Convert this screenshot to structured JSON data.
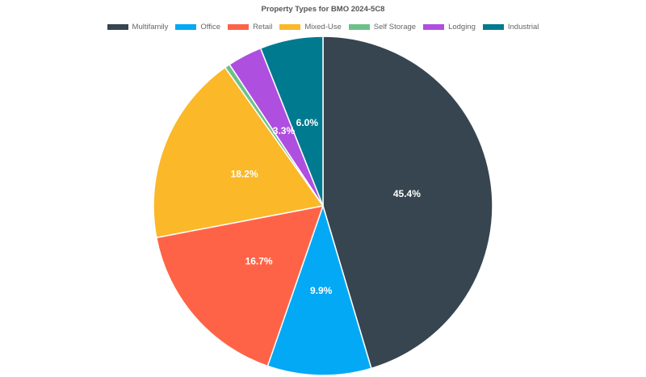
{
  "chart_data": {
    "type": "pie",
    "title": "Property Types for BMO 2024-5C8",
    "legend_position": "top",
    "slices": [
      {
        "label": "Multifamily",
        "value": 45.4,
        "display": "45.4%",
        "color": "#36454f"
      },
      {
        "label": "Office",
        "value": 9.9,
        "display": "9.9%",
        "color": "#03a9f4"
      },
      {
        "label": "Retail",
        "value": 16.7,
        "display": "16.7%",
        "color": "#ff6347"
      },
      {
        "label": "Mixed-Use",
        "value": 18.2,
        "display": "18.2%",
        "color": "#fbb829"
      },
      {
        "label": "Self Storage",
        "value": 0.5,
        "display": "0.5%",
        "color": "#6cc18a"
      },
      {
        "label": "Lodging",
        "value": 3.3,
        "display": "3.3%",
        "color": "#ae4fdf"
      },
      {
        "label": "Industrial",
        "value": 6.0,
        "display": "6.0%",
        "color": "#007a8f"
      }
    ]
  }
}
